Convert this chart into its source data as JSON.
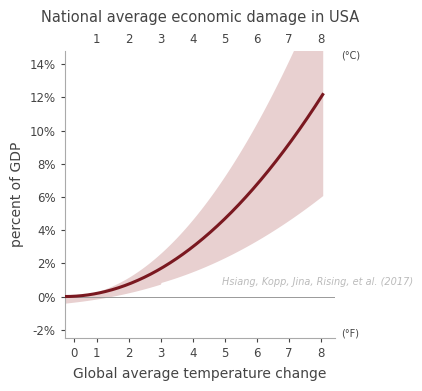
{
  "title": "National average economic damage in USA",
  "xlabel": "Global average temperature change",
  "ylabel": "percent of GDP",
  "citation": "Hsiang, Kopp, Jina, Rising, et al. (2017)",
  "xlim": [
    0.0,
    15.2
  ],
  "ylim": [
    -0.025,
    0.148
  ],
  "yticks": [
    -0.02,
    0.0,
    0.02,
    0.04,
    0.06,
    0.08,
    0.1,
    0.12,
    0.14
  ],
  "ytick_labels": [
    "-2%",
    "0%",
    "2%",
    "4%",
    "6%",
    "8%",
    "10%",
    "12%",
    "14%"
  ],
  "x_f_ticks": [
    0.5,
    1.8,
    3.6,
    5.4,
    7.2,
    9.0,
    10.8,
    12.6,
    14.4
  ],
  "x_f_labels": [
    "0",
    "1",
    "2",
    "3",
    "4",
    "5",
    "6",
    "7",
    "8"
  ],
  "x_c_ticks": [
    1.8,
    3.6,
    5.4,
    7.2,
    9.0,
    10.8,
    12.6,
    14.4
  ],
  "x_c_labels": [
    "1",
    "2",
    "3",
    "4",
    "5",
    "6",
    "7",
    "8"
  ],
  "line_color": "#7a1820",
  "fill_color": "#e8d0d0",
  "zero_line_color": "#999999",
  "bg_color": "#ffffff",
  "title_fontsize": 10.5,
  "label_fontsize": 10,
  "tick_fontsize": 8.5,
  "small_fontsize": 7,
  "citation_color": "#bbbbbb",
  "axis_color": "#aaaaaa",
  "text_color": "#444444"
}
